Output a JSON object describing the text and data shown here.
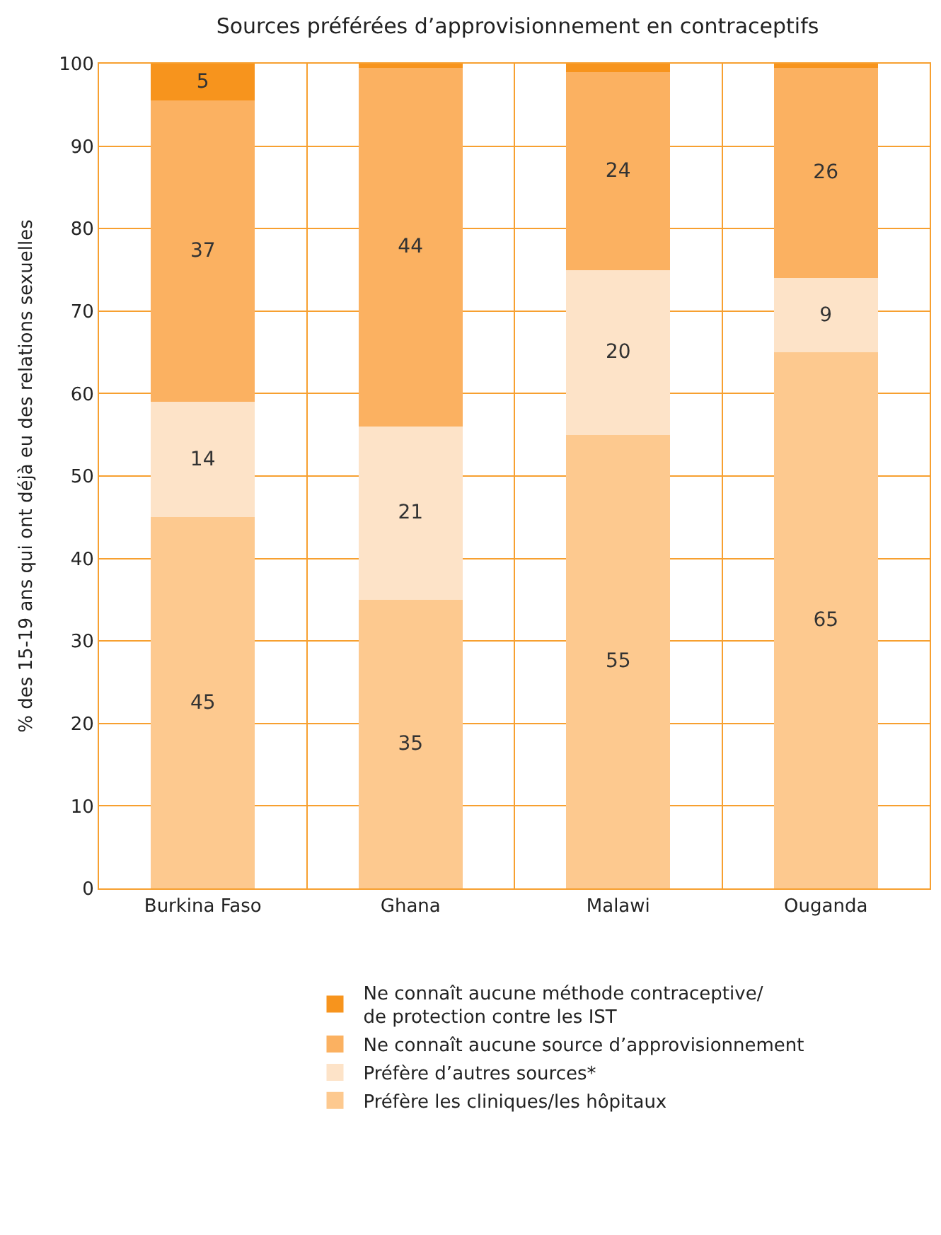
{
  "chart_data": {
    "type": "bar",
    "title": "Sources préférées d’approvisionnement en contraceptifs",
    "ylabel": "% des 15-19 ans qui ont déjà eu des relations sexuelles",
    "categories": [
      "Burkina Faso",
      "Ghana",
      "Malawi",
      "Ouganda"
    ],
    "stacked": true,
    "series": [
      {
        "name": "Préfère les cliniques/les hôpitaux",
        "color": "#fdc98f",
        "values": [
          45,
          35,
          55,
          65
        ],
        "value_labels": [
          "45",
          "35",
          "55",
          "65"
        ]
      },
      {
        "name": "Préfère d’autres sources*",
        "color": "#fde3c8",
        "values": [
          14,
          21,
          20,
          9
        ],
        "value_labels": [
          "14",
          "21",
          "20",
          "9"
        ]
      },
      {
        "name": "Ne connaît aucune source d’approvisionnement",
        "color": "#fbb161",
        "values": [
          36.5,
          43.5,
          24,
          25.5
        ],
        "value_labels": [
          "37",
          "44",
          "24",
          "26"
        ]
      },
      {
        "name": "Ne connaît aucune méthode contraceptive/\nde protection contre les IST",
        "color": "#f7941d",
        "values": [
          4.5,
          0.5,
          1,
          0.5
        ],
        "value_labels": [
          "5",
          null,
          null,
          null
        ]
      }
    ],
    "ylim": [
      0,
      100
    ],
    "yticks": [
      0,
      10,
      20,
      30,
      40,
      50,
      60,
      70,
      80,
      90,
      100
    ],
    "grid": true,
    "legend": "bottom"
  }
}
